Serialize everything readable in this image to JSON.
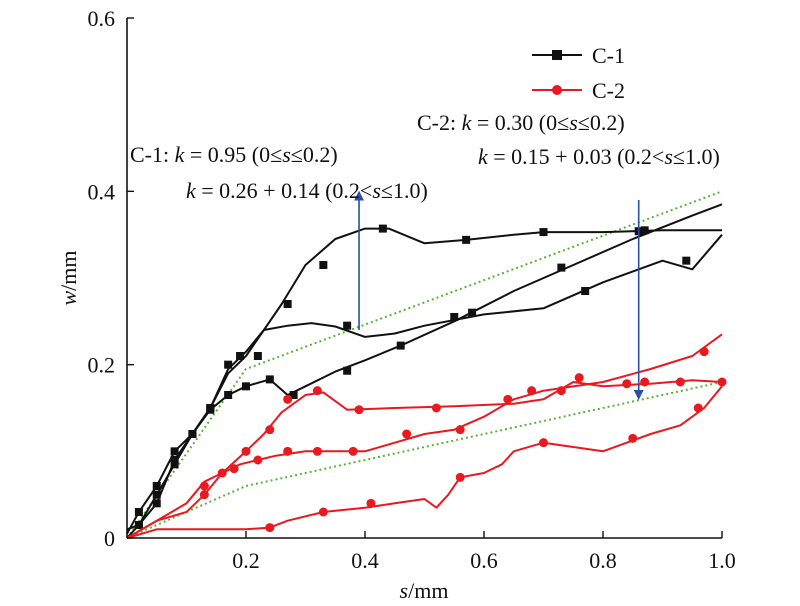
{
  "chart_data": {
    "type": "line",
    "xlim": [
      0,
      1.0
    ],
    "ylim": [
      0,
      0.6
    ],
    "x_ticks": [
      "0.2",
      "0.4",
      "0.6",
      "0.8",
      "1.0"
    ],
    "y_ticks": [
      "0",
      "0.2",
      "0.4",
      "0.6"
    ],
    "x_tick_values": [
      0.2,
      0.4,
      0.6,
      0.8,
      1.0
    ],
    "y_tick_values": [
      0,
      0.2,
      0.4,
      0.6
    ],
    "xlabel": {
      "var": "s",
      "unit": "/mm"
    },
    "ylabel": {
      "var": "w",
      "unit": "/mm"
    },
    "grid": false,
    "legend": {
      "position": "top-right",
      "entries": [
        {
          "name": "C-1",
          "color": "#111111",
          "marker": "square"
        },
        {
          "name": "C-2",
          "color": "#e8191f",
          "marker": "circle"
        }
      ]
    },
    "annotations": {
      "c1_line1": {
        "prefix": "C-1: ",
        "k": "k",
        "eq": " = 0.95 (0≤",
        "s": "s",
        "rest": "≤0.2)"
      },
      "c1_line2": {
        "k": "k",
        "eq": " = 0.26 + 0.14 (0.2<",
        "s": "s",
        "rest": "≤1.0)"
      },
      "c2_line1": {
        "prefix": "C-2: ",
        "k": "k",
        "eq": " = 0.30 (0≤",
        "s": "s",
        "rest": "≤0.2)"
      },
      "c2_line2": {
        "k": "k",
        "eq": " = 0.15 + 0.03 (0.2<",
        "s": "s",
        "rest": "≤1.0)"
      }
    },
    "arrows": [
      {
        "series": "C-1",
        "x": 0.39,
        "y_from": 0.24,
        "y_to": 0.395,
        "color": "#2b4fa8"
      },
      {
        "series": "C-2",
        "x": 0.86,
        "y_from": 0.39,
        "y_to": 0.165,
        "color": "#2b4fa8"
      }
    ],
    "fit_lines": [
      {
        "series": "C-1",
        "color": "#55b531",
        "points": [
          [
            0,
            0
          ],
          [
            0.2,
            0.195
          ],
          [
            1.0,
            0.4
          ]
        ]
      },
      {
        "series": "C-2",
        "color": "#55b531",
        "points": [
          [
            0,
            0
          ],
          [
            0.2,
            0.06
          ],
          [
            1.0,
            0.18
          ]
        ]
      }
    ],
    "series": [
      {
        "name": "C-1",
        "color": "#111111",
        "marker": "square",
        "curves": [
          {
            "line": [
              [
                0,
                0
              ],
              [
                0.02,
                0.015
              ],
              [
                0.05,
                0.05
              ],
              [
                0.08,
                0.085
              ],
              [
                0.11,
                0.12
              ],
              [
                0.14,
                0.15
              ],
              [
                0.17,
                0.19
              ],
              [
                0.2,
                0.21
              ],
              [
                0.23,
                0.24
              ],
              [
                0.27,
                0.245
              ],
              [
                0.31,
                0.248
              ],
              [
                0.35,
                0.244
              ],
              [
                0.4,
                0.232
              ],
              [
                0.45,
                0.236
              ],
              [
                0.5,
                0.245
              ],
              [
                0.6,
                0.258
              ],
              [
                0.7,
                0.265
              ],
              [
                0.8,
                0.295
              ],
              [
                0.9,
                0.32
              ],
              [
                0.95,
                0.31
              ],
              [
                1.0,
                0.35
              ]
            ],
            "markers": [
              [
                0.02,
                0.015
              ],
              [
                0.05,
                0.05
              ],
              [
                0.08,
                0.085
              ],
              [
                0.11,
                0.12
              ],
              [
                0.14,
                0.15
              ],
              [
                0.37,
                0.245
              ],
              [
                0.58,
                0.26
              ],
              [
                0.77,
                0.285
              ],
              [
                0.94,
                0.32
              ]
            ]
          },
          {
            "line": [
              [
                0,
                0.005
              ],
              [
                0.02,
                0.03
              ],
              [
                0.05,
                0.06
              ],
              [
                0.08,
                0.1
              ],
              [
                0.11,
                0.12
              ],
              [
                0.14,
                0.148
              ],
              [
                0.17,
                0.165
              ],
              [
                0.2,
                0.175
              ],
              [
                0.24,
                0.183
              ],
              [
                0.27,
                0.165
              ],
              [
                0.3,
                0.175
              ],
              [
                0.35,
                0.192
              ],
              [
                0.4,
                0.205
              ],
              [
                0.46,
                0.222
              ],
              [
                0.55,
                0.25
              ],
              [
                0.65,
                0.285
              ],
              [
                0.75,
                0.315
              ],
              [
                0.85,
                0.345
              ],
              [
                0.95,
                0.372
              ],
              [
                1.0,
                0.385
              ]
            ],
            "markers": [
              [
                0.02,
                0.03
              ],
              [
                0.05,
                0.06
              ],
              [
                0.08,
                0.1
              ],
              [
                0.11,
                0.12
              ],
              [
                0.14,
                0.148
              ],
              [
                0.17,
                0.165
              ],
              [
                0.2,
                0.175
              ],
              [
                0.24,
                0.183
              ],
              [
                0.28,
                0.165
              ],
              [
                0.37,
                0.193
              ],
              [
                0.46,
                0.222
              ],
              [
                0.55,
                0.255
              ],
              [
                0.73,
                0.312
              ],
              [
                0.87,
                0.355
              ]
            ]
          },
          {
            "line": [
              [
                0,
                0.01
              ],
              [
                0.02,
                0.015
              ],
              [
                0.05,
                0.04
              ],
              [
                0.08,
                0.09
              ],
              [
                0.11,
                0.12
              ],
              [
                0.14,
                0.15
              ],
              [
                0.17,
                0.195
              ],
              [
                0.2,
                0.215
              ],
              [
                0.23,
                0.24
              ],
              [
                0.26,
                0.27
              ],
              [
                0.3,
                0.315
              ],
              [
                0.35,
                0.345
              ],
              [
                0.4,
                0.357
              ],
              [
                0.44,
                0.357
              ],
              [
                0.5,
                0.34
              ],
              [
                0.57,
                0.344
              ],
              [
                0.65,
                0.35
              ],
              [
                0.7,
                0.353
              ],
              [
                0.8,
                0.353
              ],
              [
                0.9,
                0.355
              ],
              [
                1.0,
                0.355
              ]
            ],
            "markers": [
              [
                0.02,
                0.015
              ],
              [
                0.05,
                0.04
              ],
              [
                0.08,
                0.09
              ],
              [
                0.11,
                0.12
              ],
              [
                0.14,
                0.15
              ],
              [
                0.17,
                0.2
              ],
              [
                0.19,
                0.21
              ],
              [
                0.22,
                0.21
              ],
              [
                0.27,
                0.27
              ],
              [
                0.33,
                0.315
              ],
              [
                0.43,
                0.357
              ],
              [
                0.57,
                0.344
              ],
              [
                0.7,
                0.353
              ],
              [
                0.86,
                0.354
              ]
            ]
          }
        ]
      },
      {
        "name": "C-2",
        "color": "#e8191f",
        "marker": "circle",
        "curves": [
          {
            "line": [
              [
                0,
                0
              ],
              [
                0.05,
                0.01
              ],
              [
                0.1,
                0.01
              ],
              [
                0.2,
                0.01
              ],
              [
                0.24,
                0.012
              ],
              [
                0.27,
                0.02
              ],
              [
                0.33,
                0.03
              ],
              [
                0.4,
                0.035
              ],
              [
                0.45,
                0.04
              ],
              [
                0.5,
                0.045
              ],
              [
                0.52,
                0.035
              ],
              [
                0.54,
                0.05
              ],
              [
                0.56,
                0.07
              ],
              [
                0.6,
                0.075
              ],
              [
                0.63,
                0.085
              ],
              [
                0.65,
                0.1
              ],
              [
                0.7,
                0.11
              ],
              [
                0.8,
                0.1
              ],
              [
                0.88,
                0.12
              ],
              [
                0.93,
                0.13
              ],
              [
                0.97,
                0.15
              ],
              [
                1.0,
                0.175
              ]
            ],
            "markers": [
              [
                0.24,
                0.012
              ],
              [
                0.33,
                0.03
              ],
              [
                0.41,
                0.04
              ],
              [
                0.56,
                0.07
              ],
              [
                0.7,
                0.11
              ],
              [
                0.85,
                0.115
              ],
              [
                0.96,
                0.15
              ]
            ]
          },
          {
            "line": [
              [
                0,
                0
              ],
              [
                0.05,
                0.02
              ],
              [
                0.1,
                0.04
              ],
              [
                0.13,
                0.065
              ],
              [
                0.16,
                0.075
              ],
              [
                0.19,
                0.085
              ],
              [
                0.22,
                0.09
              ],
              [
                0.25,
                0.095
              ],
              [
                0.3,
                0.1
              ],
              [
                0.35,
                0.1
              ],
              [
                0.4,
                0.1
              ],
              [
                0.45,
                0.11
              ],
              [
                0.5,
                0.12
              ],
              [
                0.55,
                0.125
              ],
              [
                0.6,
                0.14
              ],
              [
                0.65,
                0.16
              ],
              [
                0.7,
                0.17
              ],
              [
                0.8,
                0.18
              ],
              [
                0.88,
                0.195
              ],
              [
                0.95,
                0.21
              ],
              [
                1.0,
                0.235
              ]
            ],
            "markers": [
              [
                0.13,
                0.06
              ],
              [
                0.18,
                0.08
              ],
              [
                0.22,
                0.09
              ],
              [
                0.27,
                0.1
              ],
              [
                0.32,
                0.1
              ],
              [
                0.38,
                0.1
              ],
              [
                0.47,
                0.12
              ],
              [
                0.56,
                0.125
              ],
              [
                0.64,
                0.16
              ],
              [
                0.73,
                0.17
              ],
              [
                0.87,
                0.18
              ],
              [
                0.97,
                0.215
              ]
            ]
          },
          {
            "line": [
              [
                0,
                0
              ],
              [
                0.05,
                0.02
              ],
              [
                0.1,
                0.03
              ],
              [
                0.13,
                0.05
              ],
              [
                0.16,
                0.075
              ],
              [
                0.2,
                0.1
              ],
              [
                0.23,
                0.12
              ],
              [
                0.26,
                0.145
              ],
              [
                0.3,
                0.165
              ],
              [
                0.33,
                0.168
              ],
              [
                0.37,
                0.148
              ],
              [
                0.45,
                0.15
              ],
              [
                0.55,
                0.152
              ],
              [
                0.65,
                0.155
              ],
              [
                0.7,
                0.16
              ],
              [
                0.75,
                0.18
              ],
              [
                0.8,
                0.175
              ],
              [
                0.88,
                0.178
              ],
              [
                0.95,
                0.182
              ],
              [
                1.0,
                0.18
              ]
            ],
            "markers": [
              [
                0.13,
                0.05
              ],
              [
                0.16,
                0.075
              ],
              [
                0.2,
                0.1
              ],
              [
                0.24,
                0.125
              ],
              [
                0.27,
                0.16
              ],
              [
                0.32,
                0.17
              ],
              [
                0.39,
                0.148
              ],
              [
                0.52,
                0.15
              ],
              [
                0.68,
                0.17
              ],
              [
                0.76,
                0.185
              ],
              [
                0.84,
                0.178
              ],
              [
                0.93,
                0.18
              ],
              [
                1.0,
                0.18
              ]
            ]
          }
        ]
      }
    ]
  }
}
